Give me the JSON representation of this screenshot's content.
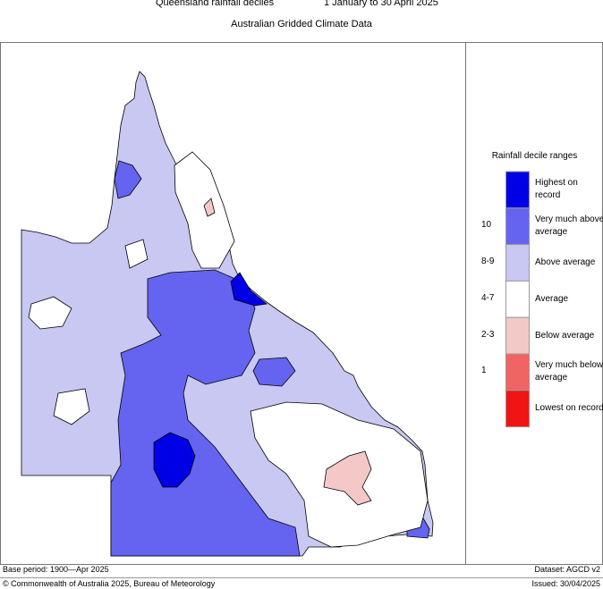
{
  "header": {
    "title": "Queensland rainfall deciles",
    "period": "1 January to 30 April 2025",
    "subtitle": "Australian Gridded Climate Data"
  },
  "legend": {
    "title": "Rainfall decile ranges",
    "items": [
      {
        "label": "Highest on record",
        "color": "#0000e6"
      },
      {
        "range": "10",
        "label": "Very much above average",
        "color": "#6464f0"
      },
      {
        "range": "8-9",
        "label": "Above average",
        "color": "#c8c8f2"
      },
      {
        "range": "4-7",
        "label": "Average",
        "color": "#ffffff"
      },
      {
        "range": "2-3",
        "label": "Below average",
        "color": "#f5c8c8"
      },
      {
        "range": "1",
        "label": "Very much below average",
        "color": "#f06464"
      },
      {
        "label": "Lowest on record",
        "color": "#f01414"
      }
    ]
  },
  "footer": {
    "base_period": "Base period: 1900—Apr 2025",
    "dataset": "Dataset: AGCD v2",
    "copyright": "© Commonwealth of Australia 2025, Bureau of Meteorology",
    "issued": "Issued: 30/04/2025"
  }
}
